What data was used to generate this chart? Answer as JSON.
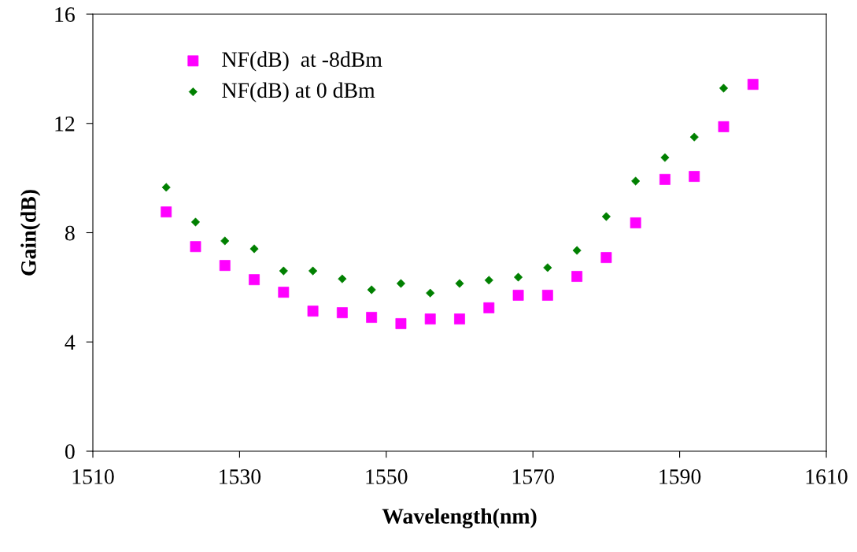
{
  "chart_data": {
    "type": "scatter",
    "xlabel": "Wavelength(nm)",
    "ylabel": "Gain(dB)",
    "xlim": [
      1510,
      1610
    ],
    "xticks": [
      1510,
      1530,
      1550,
      1570,
      1590,
      1610
    ],
    "ylim": [
      0,
      16
    ],
    "yticks": [
      0,
      4,
      8,
      12,
      16
    ],
    "grid": false,
    "legend": "top left",
    "series": [
      {
        "name": "NF(dB)  at -8dBm",
        "color": "#ff00ff",
        "marker": "square",
        "x": [
          1520,
          1524,
          1528,
          1532,
          1536,
          1540,
          1544,
          1548,
          1552,
          1556,
          1560,
          1564,
          1568,
          1572,
          1576,
          1580,
          1584,
          1588,
          1592,
          1596,
          1600
        ],
        "values": [
          8.76,
          7.49,
          6.8,
          6.28,
          5.82,
          5.13,
          5.07,
          4.9,
          4.67,
          4.84,
          4.84,
          5.25,
          5.71,
          5.71,
          6.4,
          7.09,
          8.36,
          9.95,
          10.06,
          11.88,
          13.43
        ]
      },
      {
        "name": "NF(dB) at 0 dBm",
        "color": "#008000",
        "marker": "diamond",
        "x": [
          1520,
          1524,
          1528,
          1532,
          1536,
          1540,
          1544,
          1548,
          1552,
          1556,
          1560,
          1564,
          1568,
          1572,
          1576,
          1580,
          1584,
          1588,
          1592,
          1596
        ],
        "values": [
          9.66,
          8.39,
          7.7,
          7.41,
          6.6,
          6.6,
          6.31,
          5.91,
          6.14,
          5.79,
          6.14,
          6.26,
          6.37,
          6.72,
          7.35,
          8.59,
          9.89,
          10.75,
          11.5,
          13.29
        ]
      }
    ]
  }
}
